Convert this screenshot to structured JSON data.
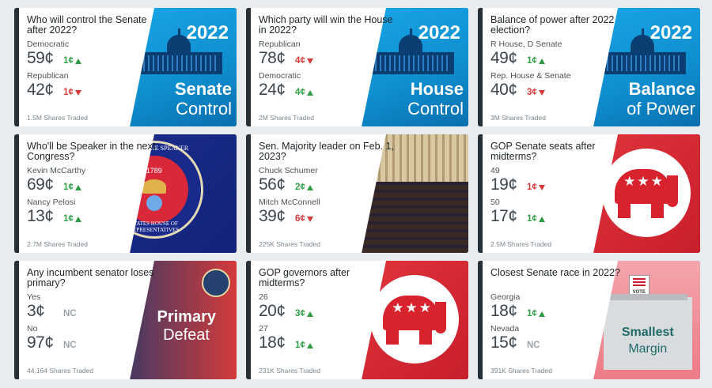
{
  "cards": [
    {
      "question": "Who will control the Senate after 2022?",
      "art": "blue",
      "art_year": "2022",
      "art_line1": "Senate",
      "art_line2": "Control",
      "rows": [
        {
          "label": "Democratic",
          "price": "59¢",
          "change": "1¢",
          "dir": "up"
        },
        {
          "label": "Republican",
          "price": "42¢",
          "change": "1¢",
          "dir": "down"
        }
      ],
      "shares": "1.5M Shares Traded"
    },
    {
      "question": "Which party will win the House in 2022?",
      "art": "blue",
      "art_year": "2022",
      "art_line1": "House",
      "art_line2": "Control",
      "rows": [
        {
          "label": "Republican",
          "price": "78¢",
          "change": "4¢",
          "dir": "down"
        },
        {
          "label": "Democratic",
          "price": "24¢",
          "change": "4¢",
          "dir": "up"
        }
      ],
      "shares": "2M Shares Traded"
    },
    {
      "question": "Balance of power after 2022 election?",
      "art": "blue",
      "art_year": "2022",
      "art_line1": "Balance",
      "art_line2": "of Power",
      "rows": [
        {
          "label": "R House, D Senate",
          "price": "49¢",
          "change": "1¢",
          "dir": "up"
        },
        {
          "label": "Rep. House & Senate",
          "price": "40¢",
          "change": "3¢",
          "dir": "down"
        }
      ],
      "shares": "3M Shares Traded"
    },
    {
      "question": "Who'll be Speaker in the next Congress?",
      "art": "speaker",
      "seal_top": "SEAL OF THE SPEAKER",
      "seal_bottom": "STATES HOUSE OF REPRESENTATIVES",
      "seal_year": "1789",
      "rows": [
        {
          "label": "Kevin McCarthy",
          "price": "69¢",
          "change": "1¢",
          "dir": "up"
        },
        {
          "label": "Nancy Pelosi",
          "price": "13¢",
          "change": "1¢",
          "dir": "up"
        }
      ],
      "shares": "2.7M Shares Traded"
    },
    {
      "question": "Sen. Majority leader on Feb. 1, 2023?",
      "art": "chamber",
      "rows": [
        {
          "label": "Chuck Schumer",
          "price": "56¢",
          "change": "2¢",
          "dir": "up"
        },
        {
          "label": "Mitch McConnell",
          "price": "39¢",
          "change": "6¢",
          "dir": "down"
        }
      ],
      "shares": "225K Shares Traded"
    },
    {
      "question": "GOP Senate seats after midterms?",
      "art": "gop",
      "rows": [
        {
          "label": "49",
          "price": "19¢",
          "change": "1¢",
          "dir": "down"
        },
        {
          "label": "50",
          "price": "17¢",
          "change": "1¢",
          "dir": "up"
        }
      ],
      "shares": "2.5M Shares Traded"
    },
    {
      "question": "Any incumbent senator loses primary?",
      "art": "primary",
      "art_line1": "Primary",
      "art_line2": "Defeat",
      "rows": [
        {
          "label": "Yes",
          "price": "3¢",
          "change": "NC",
          "dir": "nc"
        },
        {
          "label": "No",
          "price": "97¢",
          "change": "NC",
          "dir": "nc"
        }
      ],
      "shares": "44,164 Shares Traded"
    },
    {
      "question": "GOP governors after midterms?",
      "art": "gop",
      "rows": [
        {
          "label": "26",
          "price": "20¢",
          "change": "3¢",
          "dir": "up"
        },
        {
          "label": "27",
          "price": "18¢",
          "change": "1¢",
          "dir": "up"
        }
      ],
      "shares": "231K Shares Traded"
    },
    {
      "question": "Closest Senate race in 2022?",
      "art": "ballot",
      "art_line1": "Smallest",
      "art_line2": "Margin",
      "ballot_text": "VOTE",
      "rows": [
        {
          "label": "Georgia",
          "price": "18¢",
          "change": "1¢",
          "dir": "up"
        },
        {
          "label": "Nevada",
          "price": "15¢",
          "change": "NC",
          "dir": "nc"
        }
      ],
      "shares": "391K Shares Traded"
    }
  ]
}
